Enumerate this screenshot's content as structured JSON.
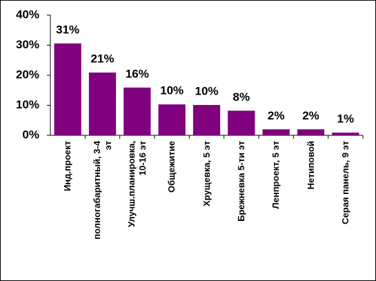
{
  "chart_data": {
    "type": "bar",
    "categories": [
      "Инд.проект",
      "полногабаритный, 3-4\nэт",
      "Улучш.планировка,\n10-16 эт",
      "Общежитие",
      "Хрущевка, 5 эт",
      "Брежневка 5-ти эт",
      "Ленпроект, 5 эт",
      "Нетиповой",
      "Серая панель, 9 эт"
    ],
    "values": [
      30.6,
      20.9,
      15.9,
      10.3,
      10.1,
      8.2,
      2,
      2,
      0.9
    ],
    "value_labels": [
      "31%",
      "21%",
      "16%",
      "10%",
      "10%",
      "8%",
      "2%",
      "2%",
      "1%"
    ],
    "color": "#800080",
    "ylim": [
      0,
      40
    ],
    "yticks": [
      {
        "value": 0,
        "label": "0%"
      },
      {
        "value": 10,
        "label": "10%"
      },
      {
        "value": 20,
        "label": "20%"
      },
      {
        "value": 30,
        "label": "30%"
      },
      {
        "value": 40,
        "label": "40%"
      }
    ]
  }
}
